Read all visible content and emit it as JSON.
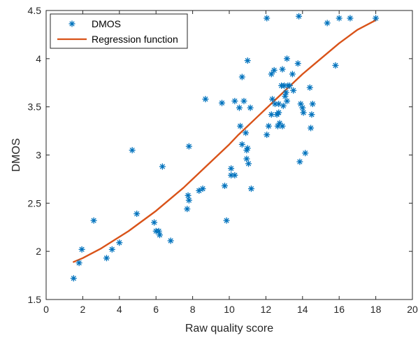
{
  "chart_data": {
    "type": "scatter",
    "xlabel": "Raw quality score",
    "ylabel": "DMOS",
    "xlim": [
      0,
      20
    ],
    "ylim": [
      1.5,
      4.5
    ],
    "xticks": [
      0,
      2,
      4,
      6,
      8,
      10,
      12,
      14,
      16,
      18,
      20
    ],
    "yticks": [
      1.5,
      2,
      2.5,
      3,
      3.5,
      4,
      4.5
    ],
    "xtick_labels": [
      "0",
      "2",
      "4",
      "6",
      "8",
      "10",
      "12",
      "14",
      "16",
      "18",
      "20"
    ],
    "ytick_labels": [
      "1.5",
      "2",
      "2.5",
      "3",
      "3.5",
      "4",
      "4.5"
    ],
    "grid": false,
    "legend_position": "top-left",
    "legend": [
      {
        "label": "DMOS",
        "marker": "asterisk",
        "color": "#0072BD"
      },
      {
        "label": "Regression function",
        "marker": "line",
        "color": "#D95319"
      }
    ],
    "series": [
      {
        "name": "DMOS",
        "kind": "scatter",
        "color": "#0072BD",
        "points": [
          [
            1.5,
            1.72
          ],
          [
            1.8,
            1.88
          ],
          [
            1.95,
            2.02
          ],
          [
            2.6,
            2.32
          ],
          [
            3.3,
            1.93
          ],
          [
            3.6,
            2.02
          ],
          [
            4.0,
            2.09
          ],
          [
            4.7,
            3.05
          ],
          [
            4.95,
            2.39
          ],
          [
            5.9,
            2.3
          ],
          [
            6.0,
            2.21
          ],
          [
            6.15,
            2.21
          ],
          [
            6.2,
            2.17
          ],
          [
            6.35,
            2.88
          ],
          [
            6.8,
            2.11
          ],
          [
            7.7,
            2.44
          ],
          [
            7.75,
            2.58
          ],
          [
            7.8,
            2.53
          ],
          [
            7.8,
            3.09
          ],
          [
            8.35,
            2.63
          ],
          [
            8.55,
            2.65
          ],
          [
            8.7,
            3.58
          ],
          [
            9.6,
            3.54
          ],
          [
            9.75,
            2.68
          ],
          [
            9.85,
            2.32
          ],
          [
            10.1,
            2.86
          ],
          [
            10.1,
            2.79
          ],
          [
            10.3,
            2.79
          ],
          [
            10.3,
            3.56
          ],
          [
            10.55,
            3.49
          ],
          [
            10.6,
            3.3
          ],
          [
            10.7,
            3.81
          ],
          [
            10.7,
            3.11
          ],
          [
            10.8,
            3.56
          ],
          [
            10.9,
            3.23
          ],
          [
            10.95,
            3.05
          ],
          [
            10.95,
            2.96
          ],
          [
            11.0,
            3.07
          ],
          [
            11.0,
            3.98
          ],
          [
            11.05,
            2.91
          ],
          [
            11.15,
            3.49
          ],
          [
            11.2,
            2.65
          ],
          [
            12.05,
            3.21
          ],
          [
            12.05,
            4.42
          ],
          [
            12.15,
            3.3
          ],
          [
            12.3,
            3.42
          ],
          [
            12.3,
            3.84
          ],
          [
            12.35,
            3.58
          ],
          [
            12.45,
            3.88
          ],
          [
            12.5,
            3.53
          ],
          [
            12.6,
            3.42
          ],
          [
            12.65,
            3.3
          ],
          [
            12.7,
            3.44
          ],
          [
            12.7,
            3.53
          ],
          [
            12.75,
            3.33
          ],
          [
            12.85,
            3.72
          ],
          [
            12.9,
            3.89
          ],
          [
            12.9,
            3.3
          ],
          [
            12.95,
            3.51
          ],
          [
            13.0,
            3.72
          ],
          [
            13.05,
            3.61
          ],
          [
            13.1,
            3.65
          ],
          [
            13.15,
            4.0
          ],
          [
            13.15,
            3.56
          ],
          [
            13.2,
            3.72
          ],
          [
            13.3,
            3.72
          ],
          [
            13.45,
            3.84
          ],
          [
            13.5,
            3.67
          ],
          [
            13.75,
            3.95
          ],
          [
            13.8,
            4.44
          ],
          [
            13.85,
            2.93
          ],
          [
            13.9,
            3.53
          ],
          [
            14.0,
            3.49
          ],
          [
            14.05,
            3.44
          ],
          [
            14.15,
            3.02
          ],
          [
            14.4,
            3.7
          ],
          [
            14.45,
            3.28
          ],
          [
            14.5,
            3.42
          ],
          [
            14.55,
            3.53
          ],
          [
            15.35,
            4.37
          ],
          [
            15.8,
            3.93
          ],
          [
            16.0,
            4.42
          ],
          [
            16.6,
            4.42
          ],
          [
            18.0,
            4.42
          ]
        ]
      },
      {
        "name": "Regression function",
        "kind": "line",
        "color": "#D95319",
        "points": [
          [
            1.5,
            1.89
          ],
          [
            2.0,
            1.93
          ],
          [
            2.5,
            1.98
          ],
          [
            3.0,
            2.03
          ],
          [
            3.5,
            2.09
          ],
          [
            4.0,
            2.15
          ],
          [
            4.5,
            2.21
          ],
          [
            5.0,
            2.28
          ],
          [
            5.5,
            2.35
          ],
          [
            6.0,
            2.42
          ],
          [
            6.5,
            2.5
          ],
          [
            7.0,
            2.58
          ],
          [
            7.5,
            2.66
          ],
          [
            8.0,
            2.75
          ],
          [
            8.5,
            2.84
          ],
          [
            9.0,
            2.93
          ],
          [
            9.5,
            3.02
          ],
          [
            10.0,
            3.11
          ],
          [
            10.5,
            3.21
          ],
          [
            11.0,
            3.3
          ],
          [
            11.5,
            3.39
          ],
          [
            12.0,
            3.48
          ],
          [
            12.5,
            3.57
          ],
          [
            13.0,
            3.66
          ],
          [
            13.5,
            3.75
          ],
          [
            14.0,
            3.84
          ],
          [
            14.5,
            3.92
          ],
          [
            15.0,
            4.0
          ],
          [
            15.5,
            4.08
          ],
          [
            16.0,
            4.16
          ],
          [
            16.5,
            4.23
          ],
          [
            17.0,
            4.3
          ],
          [
            17.5,
            4.35
          ],
          [
            18.0,
            4.4
          ]
        ]
      }
    ]
  }
}
